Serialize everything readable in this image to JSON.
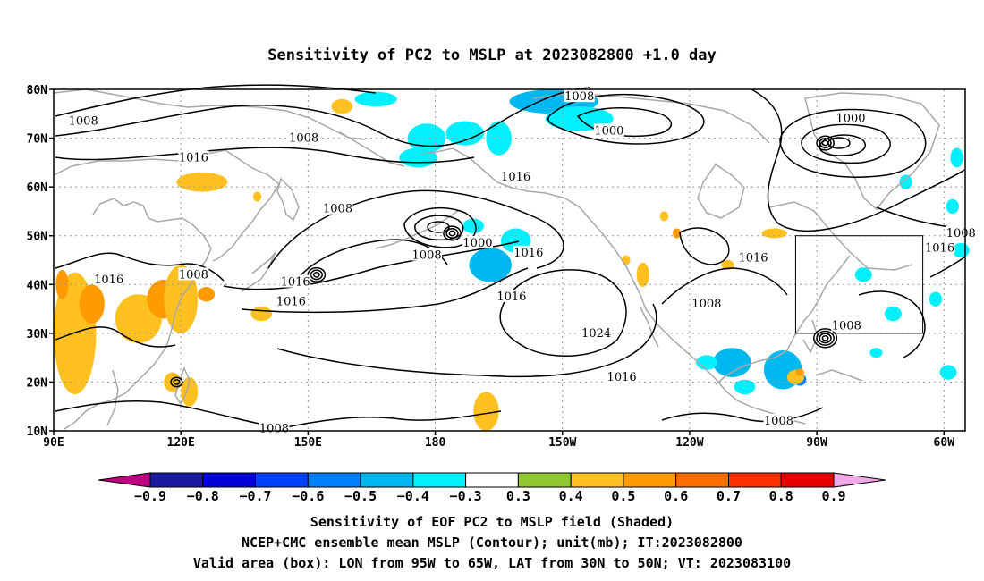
{
  "title": "Sensitivity of PC2 to MSLP at 2023082800 +1.0 day",
  "map": {
    "lon_range": [
      90,
      305
    ],
    "lat_range": [
      10,
      80
    ],
    "lat_ticks": [
      "80N",
      "70N",
      "60N",
      "50N",
      "40N",
      "30N",
      "20N",
      "10N"
    ],
    "lon_ticks": [
      "90E",
      "120E",
      "150E",
      "180",
      "150W",
      "120W",
      "90W",
      "60W"
    ],
    "grid": "dotted",
    "valid_box": {
      "lon": [
        "95W",
        "65W"
      ],
      "lat": [
        "30N",
        "50N"
      ]
    }
  },
  "contour_labels": [
    {
      "text": "1008",
      "lon": 97,
      "lat": 73.5
    },
    {
      "text": "1008",
      "lon": 149,
      "lat": 70
    },
    {
      "text": "1016",
      "lon": 123,
      "lat": 66
    },
    {
      "text": "1008",
      "lon": 214,
      "lat": 78.5
    },
    {
      "text": "1000",
      "lon": 221,
      "lat": 71.5
    },
    {
      "text": "1000",
      "lon": 278,
      "lat": 74
    },
    {
      "text": "1016",
      "lon": 199,
      "lat": 62
    },
    {
      "text": "1008",
      "lon": 157,
      "lat": 55.5
    },
    {
      "text": "1000",
      "lon": 190,
      "lat": 48.5
    },
    {
      "text": "1008",
      "lon": 178,
      "lat": 46
    },
    {
      "text": "1016",
      "lon": 202,
      "lat": 46.5
    },
    {
      "text": "1016",
      "lon": 103,
      "lat": 41
    },
    {
      "text": "1008",
      "lon": 123,
      "lat": 42
    },
    {
      "text": "1016",
      "lon": 147,
      "lat": 40.5
    },
    {
      "text": "1016",
      "lon": 146,
      "lat": 36.5
    },
    {
      "text": "1016",
      "lon": 198,
      "lat": 37.5
    },
    {
      "text": "1024",
      "lon": 218,
      "lat": 30
    },
    {
      "text": "1016",
      "lon": 224,
      "lat": 21
    },
    {
      "text": "1008",
      "lon": 244,
      "lat": 36
    },
    {
      "text": "1016",
      "lon": 255,
      "lat": 45.5
    },
    {
      "text": "1008",
      "lon": 261,
      "lat": 12
    },
    {
      "text": "1008",
      "lon": 277,
      "lat": 31.5
    },
    {
      "text": "1008",
      "lon": 304,
      "lat": 50.5
    },
    {
      "text": "1016",
      "lon": 299,
      "lat": 47.5
    },
    {
      "text": "1008",
      "lon": 142,
      "lat": 10.5
    }
  ],
  "shading": [
    {
      "lon": 262,
      "lat": 23.5,
      "w": 5,
      "h": 4,
      "value": -0.7
    },
    {
      "lon": 266,
      "lat": 20.5,
      "w": 3,
      "h": 2.5,
      "value": -0.6
    },
    {
      "lon": 262,
      "lat": 22.5,
      "w": 9,
      "h": 8,
      "value": -0.5
    },
    {
      "lon": 250,
      "lat": 24,
      "w": 9,
      "h": 6,
      "value": -0.5
    },
    {
      "lon": 244,
      "lat": 24,
      "w": 5,
      "h": 3,
      "value": -0.4
    },
    {
      "lon": 253,
      "lat": 19,
      "w": 5,
      "h": 3,
      "value": -0.4
    },
    {
      "lon": 284,
      "lat": 26,
      "w": 3,
      "h": 2,
      "value": -0.4
    },
    {
      "lon": 208,
      "lat": 77.5,
      "w": 21,
      "h": 5,
      "value": -0.5
    },
    {
      "lon": 214,
      "lat": 74,
      "w": 16,
      "h": 5,
      "value": -0.4
    },
    {
      "lon": 166,
      "lat": 78,
      "w": 10,
      "h": 3,
      "value": -0.4
    },
    {
      "lon": 178,
      "lat": 70,
      "w": 9,
      "h": 6,
      "value": -0.4
    },
    {
      "lon": 187,
      "lat": 71,
      "w": 9,
      "h": 5,
      "value": -0.4
    },
    {
      "lon": 195,
      "lat": 70,
      "w": 6,
      "h": 7,
      "value": -0.4
    },
    {
      "lon": 176,
      "lat": 66,
      "w": 9,
      "h": 4,
      "value": -0.4
    },
    {
      "lon": 193,
      "lat": 44,
      "w": 10,
      "h": 7,
      "value": -0.5
    },
    {
      "lon": 199,
      "lat": 49,
      "w": 7,
      "h": 5,
      "value": -0.4
    },
    {
      "lon": 189,
      "lat": 52,
      "w": 5,
      "h": 3,
      "value": -0.4
    },
    {
      "lon": 281,
      "lat": 42,
      "w": 4,
      "h": 3,
      "value": -0.4
    },
    {
      "lon": 304,
      "lat": 47,
      "w": 4,
      "h": 3,
      "value": -0.4
    },
    {
      "lon": 301,
      "lat": 22,
      "w": 4,
      "h": 3,
      "value": -0.4
    },
    {
      "lon": 288,
      "lat": 34,
      "w": 4,
      "h": 3,
      "value": -0.4
    },
    {
      "lon": 298,
      "lat": 37,
      "w": 3,
      "h": 3,
      "value": -0.4
    },
    {
      "lon": 303,
      "lat": 66,
      "w": 3,
      "h": 4,
      "value": -0.4
    },
    {
      "lon": 291,
      "lat": 61,
      "w": 3,
      "h": 3,
      "value": -0.4
    },
    {
      "lon": 302,
      "lat": 56,
      "w": 3,
      "h": 3,
      "value": -0.4
    },
    {
      "lon": 95,
      "lat": 30,
      "w": 10,
      "h": 25,
      "value": 0.4
    },
    {
      "lon": 99,
      "lat": 36,
      "w": 6,
      "h": 8,
      "value": 0.5
    },
    {
      "lon": 92,
      "lat": 40,
      "w": 3,
      "h": 6,
      "value": 0.5
    },
    {
      "lon": 110,
      "lat": 33,
      "w": 11,
      "h": 10,
      "value": 0.4
    },
    {
      "lon": 116,
      "lat": 37,
      "w": 8,
      "h": 8,
      "value": 0.5
    },
    {
      "lon": 120,
      "lat": 37,
      "w": 8,
      "h": 14,
      "value": 0.4
    },
    {
      "lon": 126,
      "lat": 38,
      "w": 4,
      "h": 3,
      "value": 0.5
    },
    {
      "lon": 139,
      "lat": 34,
      "w": 5,
      "h": 3,
      "value": 0.4
    },
    {
      "lon": 125,
      "lat": 61,
      "w": 12,
      "h": 4,
      "value": 0.4
    },
    {
      "lon": 138,
      "lat": 58,
      "w": 2,
      "h": 2,
      "value": 0.4
    },
    {
      "lon": 158,
      "lat": 76.5,
      "w": 5,
      "h": 3,
      "value": 0.4
    },
    {
      "lon": 192,
      "lat": 14,
      "w": 6,
      "h": 8,
      "value": 0.4
    },
    {
      "lon": 122,
      "lat": 18,
      "w": 4,
      "h": 6,
      "value": 0.4
    },
    {
      "lon": 118,
      "lat": 20,
      "w": 4,
      "h": 4,
      "value": 0.4
    },
    {
      "lon": 229,
      "lat": 42,
      "w": 3,
      "h": 5,
      "value": 0.4
    },
    {
      "lon": 225,
      "lat": 45,
      "w": 2,
      "h": 2,
      "value": 0.4
    },
    {
      "lon": 234,
      "lat": 54,
      "w": 2,
      "h": 2,
      "value": 0.4
    },
    {
      "lon": 260,
      "lat": 50.5,
      "w": 6,
      "h": 2,
      "value": 0.4
    },
    {
      "lon": 249,
      "lat": 44,
      "w": 3,
      "h": 2,
      "value": 0.4
    },
    {
      "lon": 265,
      "lat": 21,
      "w": 4,
      "h": 3,
      "value": 0.4
    },
    {
      "lon": 266,
      "lat": 22,
      "w": 2,
      "h": 1.5,
      "value": 0.5
    },
    {
      "lon": 237,
      "lat": 50.5,
      "w": 2,
      "h": 2,
      "value": 0.5
    }
  ],
  "lows": [
    {
      "lon": 152,
      "lat": 42,
      "rings": 3
    },
    {
      "lon": 272,
      "lat": 29,
      "rings": 4
    },
    {
      "lon": 119,
      "lat": 20,
      "rings": 2
    },
    {
      "lon": 184,
      "lat": 50.5,
      "rings": 3
    },
    {
      "lon": 272,
      "lat": 69,
      "rings": 3
    }
  ],
  "colorbar": {
    "colors": [
      "#c00080",
      "#1a1aa0",
      "#0000d8",
      "#0040ff",
      "#0080ff",
      "#00b8f0",
      "#00f0ff",
      "#ffffff",
      "#90c830",
      "#ffc020",
      "#ff9b00",
      "#ff6e00",
      "#ff3000",
      "#e80000",
      "#f0a8e8"
    ],
    "labels": [
      "−0.9",
      "−0.8",
      "−0.7",
      "−0.6",
      "−0.5",
      "−0.4",
      "−0.3",
      "0.3",
      "0.4",
      "0.5",
      "0.6",
      "0.7",
      "0.8",
      "0.9"
    ]
  },
  "colors": {
    "contour": "#000000",
    "coast": "#a8a8a8",
    "grid": "#9a9a9a"
  },
  "footer": [
    "Sensitivity of EOF PC2 to MSLP field (Shaded)",
    "NCEP+CMC ensemble mean MSLP (Contour); unit(mb); IT:2023082800",
    "Valid area (box): LON from 95W to 65W, LAT from 30N to 50N; VT: 2023083100"
  ]
}
